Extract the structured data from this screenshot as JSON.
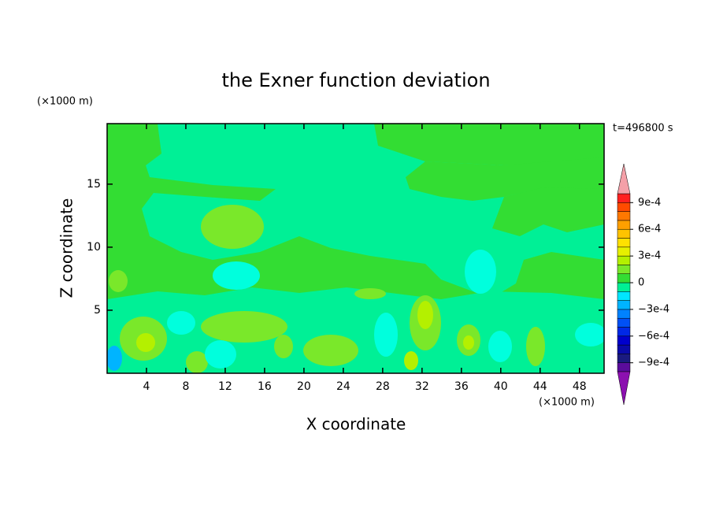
{
  "chart_data": {
    "type": "contour",
    "title": "the Exner function deviation",
    "x_label": "X coordinate",
    "y_label": "Z coordinate",
    "x_unit": "(×1000 m)",
    "y_unit": "(×1000 m)",
    "annotation": "t=496800 s",
    "xlim": [
      0,
      50.5
    ],
    "ylim": [
      0,
      19.8
    ],
    "xticks": [
      4,
      8,
      12,
      16,
      20,
      24,
      28,
      32,
      36,
      40,
      44,
      48
    ],
    "yticks": [
      5,
      10,
      15
    ],
    "colorbar": {
      "clim": [
        -0.001,
        0.001
      ],
      "colors": [
        "#5a0c9c",
        "#1a1a80",
        "#0a0aa8",
        "#0000cc",
        "#0028e6",
        "#0050f5",
        "#0082ff",
        "#00b4ff",
        "#00e6ff",
        "#00f096",
        "#33dd33",
        "#7ae82a",
        "#b4f000",
        "#e6f000",
        "#ffe100",
        "#ffc300",
        "#ffa000",
        "#ff7800",
        "#ff4b00",
        "#ff2020"
      ],
      "extend_colors": [
        "#8c10b0",
        "#f4a0a8"
      ],
      "ticks": [
        {
          "value": 0.0009,
          "label": "9e-4"
        },
        {
          "value": 0.0006,
          "label": "6e-4"
        },
        {
          "value": 0.0003,
          "label": "3e-4"
        },
        0,
        {
          "value": -0.0003,
          "label": "−3e-4"
        },
        {
          "value": -0.0006,
          "label": "−6e-4"
        },
        {
          "value": -0.0009,
          "label": "−9e-4"
        }
      ]
    }
  }
}
